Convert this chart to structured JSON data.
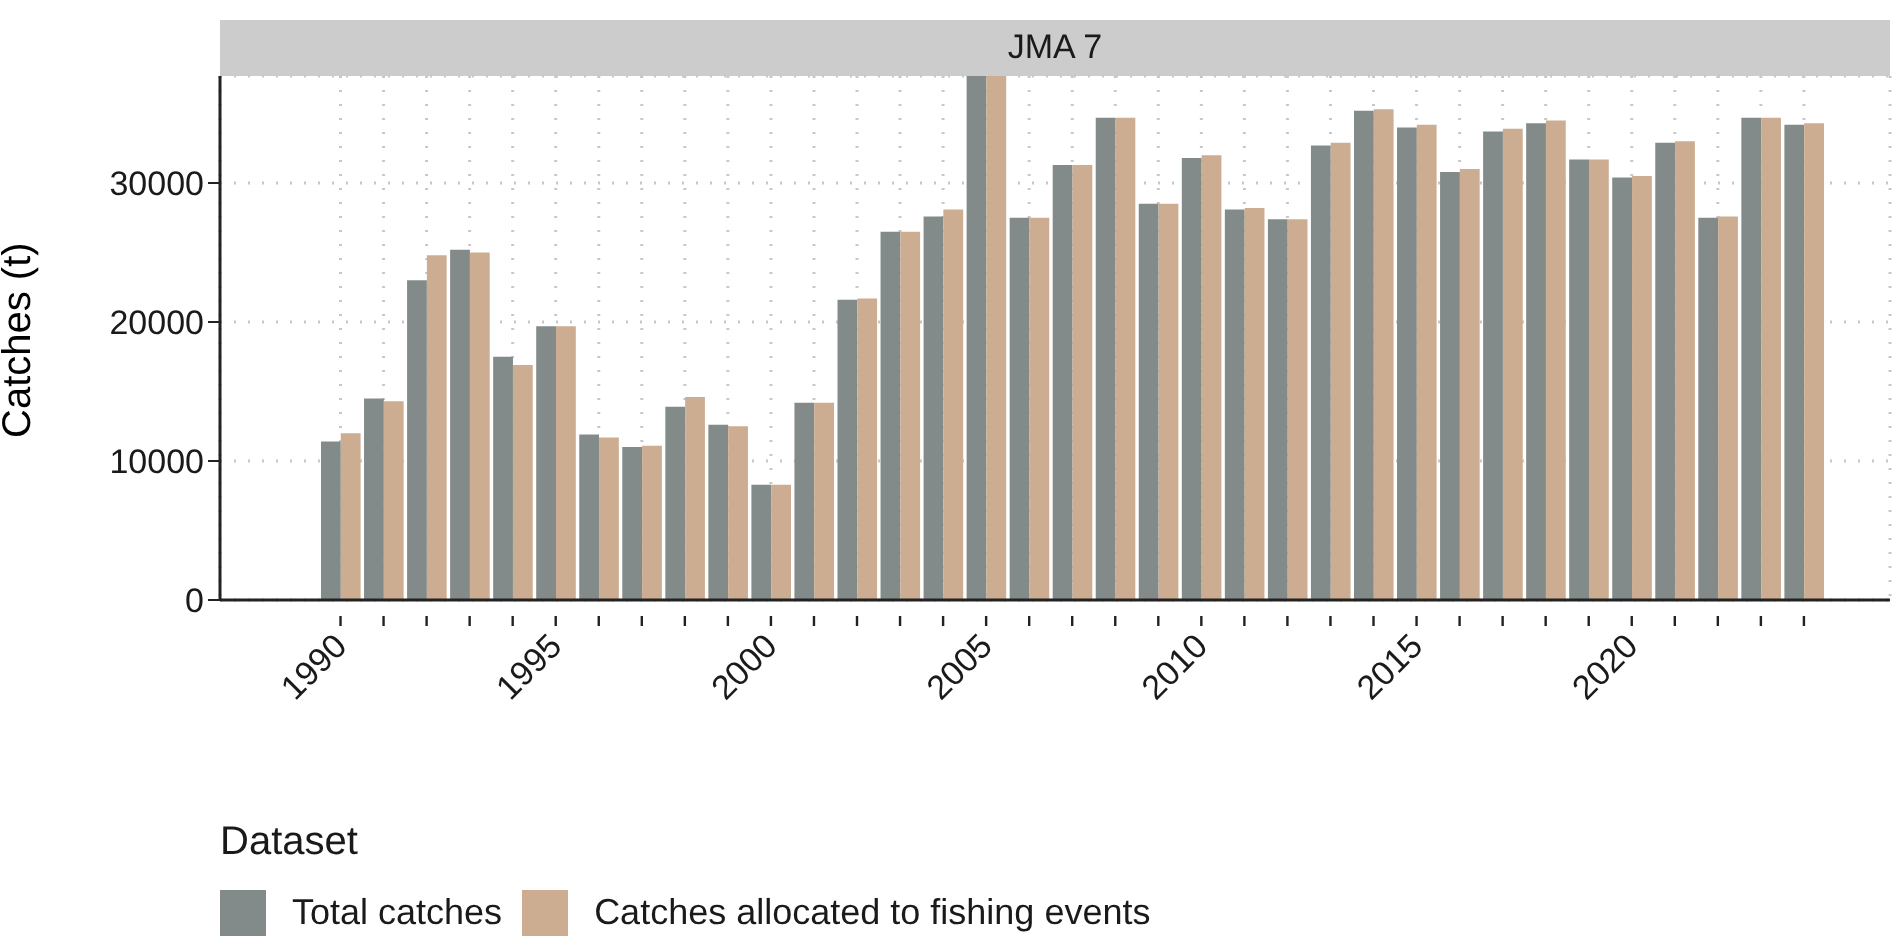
{
  "chart_data": {
    "type": "bar",
    "title": "JMA 7",
    "ylabel": "Catches (t)",
    "legend_title": "Dataset",
    "legend": "bottom",
    "grid": true,
    "x": [
      1990,
      1991,
      1992,
      1993,
      1994,
      1995,
      1996,
      1997,
      1998,
      1999,
      2000,
      2001,
      2002,
      2003,
      2004,
      2005,
      2006,
      2007,
      2008,
      2009,
      2010,
      2011,
      2012,
      2013,
      2014,
      2015,
      2016,
      2017,
      2018,
      2019,
      2020,
      2021,
      2022,
      2023,
      2024
    ],
    "xticks": [
      1990,
      {
        "value": 1991,
        "label": null
      },
      {
        "value": 1992,
        "label": null
      },
      {
        "value": 1993,
        "label": null
      },
      {
        "value": 1994,
        "label": null
      },
      1995,
      {
        "value": 1996,
        "label": null
      },
      {
        "value": 1997,
        "label": null
      },
      {
        "value": 1998,
        "label": null
      },
      {
        "value": 1999,
        "label": null
      },
      2000,
      {
        "value": 2001,
        "label": null
      },
      {
        "value": 2002,
        "label": null
      },
      {
        "value": 2003,
        "label": null
      },
      {
        "value": 2004,
        "label": null
      },
      2005,
      {
        "value": 2006,
        "label": null
      },
      {
        "value": 2007,
        "label": null
      },
      {
        "value": 2008,
        "label": null
      },
      {
        "value": 2009,
        "label": null
      },
      2010,
      {
        "value": 2011,
        "label": null
      },
      {
        "value": 2012,
        "label": null
      },
      {
        "value": 2013,
        "label": null
      },
      {
        "value": 2014,
        "label": null
      },
      2015,
      {
        "value": 2016,
        "label": null
      },
      {
        "value": 2017,
        "label": null
      },
      {
        "value": 2018,
        "label": null
      },
      {
        "value": 2019,
        "label": null
      },
      2020,
      {
        "value": 2021,
        "label": null
      },
      {
        "value": 2022,
        "label": null
      },
      {
        "value": 2023,
        "label": null
      },
      {
        "value": 2024,
        "label": null
      }
    ],
    "xlim": [
      1987.2,
      2026
    ],
    "ylim": [
      0,
      37700
    ],
    "yticks": [
      0,
      10000,
      20000,
      30000
    ],
    "series": [
      {
        "name": "Total catches",
        "color": "#838b8a",
        "values": [
          11400,
          14500,
          23000,
          25200,
          17500,
          19700,
          11900,
          11000,
          13900,
          12600,
          8300,
          14200,
          21600,
          26500,
          27600,
          37700,
          27500,
          31300,
          34700,
          28500,
          31800,
          28100,
          27400,
          32700,
          35200,
          34000,
          30800,
          33700,
          34300,
          31700,
          30400,
          32900,
          27500,
          34700,
          34200
        ]
      },
      {
        "name": "Catches allocated to fishing events",
        "color": "#ccad91",
        "values": [
          12000,
          14300,
          24800,
          25000,
          16900,
          19700,
          11700,
          11100,
          14600,
          12500,
          8300,
          14200,
          21700,
          26500,
          28100,
          37700,
          27500,
          31300,
          34700,
          28500,
          32000,
          28200,
          27400,
          32900,
          35300,
          34200,
          31000,
          33900,
          34500,
          31700,
          30500,
          33000,
          27600,
          34700,
          34300
        ]
      }
    ]
  }
}
